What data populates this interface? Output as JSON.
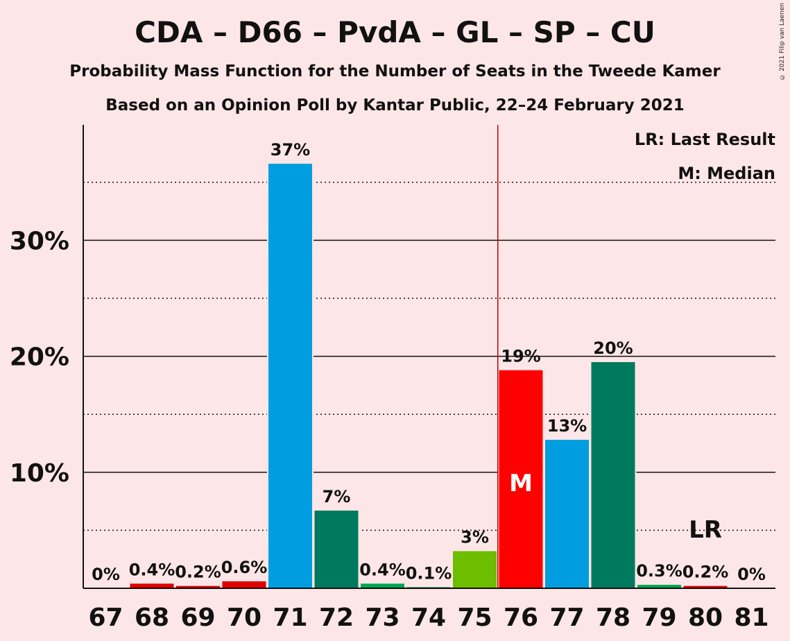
{
  "header": {
    "title": "CDA – D66 – PvdA – GL – SP – CU",
    "subtitle1": "Probability Mass Function for the Number of Seats in the Tweede Kamer",
    "subtitle2": "Based on an Opinion Poll by Kantar Public, 22–24 February 2021",
    "copyright": "© 2021 Filip van Laenen"
  },
  "legend": {
    "lr": "LR: Last Result",
    "m": "M: Median"
  },
  "chart_data": {
    "type": "bar",
    "title": "CDA – D66 – PvdA – GL – SP – CU",
    "categories": [
      "67",
      "68",
      "69",
      "70",
      "71",
      "72",
      "73",
      "74",
      "75",
      "76",
      "77",
      "78",
      "79",
      "80",
      "81"
    ],
    "values": [
      0,
      0.4,
      0.2,
      0.6,
      36.6,
      6.7,
      0.4,
      0.1,
      3.2,
      18.8,
      12.8,
      19.5,
      0.3,
      0.2,
      0
    ],
    "labels": [
      "0%",
      "0.4%",
      "0.2%",
      "0.6%",
      "37%",
      "7%",
      "0.4%",
      "0.1%",
      "3%",
      "19%",
      "13%",
      "20%",
      "0.3%",
      "0.2%",
      "0%"
    ],
    "colors": [
      "#e10000",
      "#e10000",
      "#e10000",
      "#e10000",
      "#009ee0",
      "#007a5e",
      "#00a650",
      "#00a650",
      "#6dbd00",
      "#ff0000",
      "#009ee0",
      "#007a5e",
      "#00a650",
      "#e10000",
      "#e10000"
    ],
    "yticks": [
      "10%",
      "20%",
      "30%"
    ],
    "ytick_values": [
      10,
      20,
      30
    ],
    "ylim": [
      0,
      40
    ],
    "majority_line_after": "75",
    "median": {
      "category": "76",
      "label": "M"
    },
    "last_result": {
      "category": "80",
      "label": "LR"
    },
    "grid": true,
    "legend_position": "top-right"
  }
}
